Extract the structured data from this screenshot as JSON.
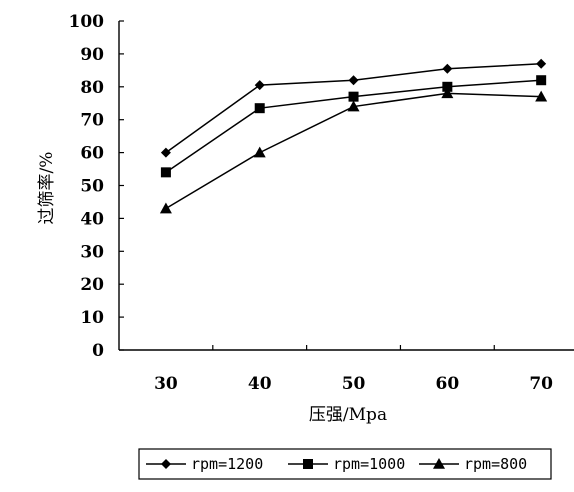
{
  "chart_data": {
    "type": "line",
    "xlabel": "压强/Mpa",
    "ylabel": "过筛率/%",
    "x": [
      30,
      40,
      50,
      60,
      70
    ],
    "xticks": [
      "30",
      "40",
      "50",
      "60",
      "70"
    ],
    "yticks": [
      "0",
      "10",
      "20",
      "30",
      "40",
      "50",
      "60",
      "70",
      "80",
      "90",
      "100"
    ],
    "ylim": [
      0,
      100
    ],
    "grid": false,
    "legend_position": "bottom",
    "series": [
      {
        "name": "rpm=1200",
        "marker": "diamond",
        "values": [
          60,
          80.5,
          82,
          85.5,
          87
        ]
      },
      {
        "name": "rpm=1000",
        "marker": "square",
        "values": [
          54,
          73.5,
          77,
          80,
          82
        ]
      },
      {
        "name": "rpm=800",
        "marker": "triangle",
        "values": [
          43,
          60,
          74,
          78,
          77
        ]
      }
    ],
    "color": "#000000"
  }
}
